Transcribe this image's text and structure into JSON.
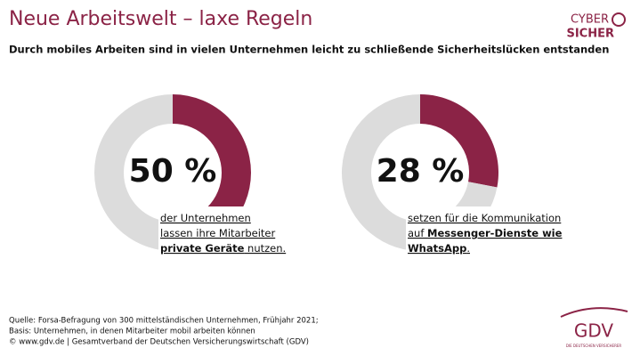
{
  "title": "Neue Arbeitswelt – laxe Regeln",
  "subtitle": "Durch mobiles Arbeiten sind in vielen Unternehmen leicht zu schließende Sicherheitslücken entstanden",
  "logo_top": [
    "CYBER",
    "SICHER"
  ],
  "logo_bottom": {
    "name": "GDV",
    "tagline": "DIE DEUTSCHEN VERSICHERER"
  },
  "footer": [
    "Quelle: Forsa-Befragung von 300 mittelständischen Unternehmen, Frühjahr 2021;",
    "Basis: Unternehmen, in denen Mitarbeiter mobil arbeiten können",
    "© www.gdv.de | Gesamtverband der Deutschen Versicherungswirtschaft (GDV)"
  ],
  "chart_data": [
    {
      "type": "donut",
      "values": [
        50,
        50
      ],
      "value_labels": [
        "50 %",
        null
      ],
      "colors": [
        "#8b2346",
        "#dcdcdc"
      ],
      "description": [
        [
          {
            "text": "der Unternehmen"
          }
        ],
        [
          {
            "text": "lassen ihre Mitarbeiter"
          }
        ],
        [
          {
            "text": "private Geräte",
            "bold": true
          },
          {
            "text": " nutzen."
          }
        ]
      ]
    },
    {
      "type": "donut",
      "values": [
        28,
        72
      ],
      "value_labels": [
        "28 %",
        null
      ],
      "colors": [
        "#8b2346",
        "#dcdcdc"
      ],
      "description": [
        [
          {
            "text": "setzen für die Kommunikation"
          }
        ],
        [
          {
            "text": "auf "
          },
          {
            "text": "Messenger-Dienste wie",
            "bold": true
          }
        ],
        [
          {
            "text": "WhatsApp",
            "bold": true
          },
          {
            "text": "."
          }
        ]
      ]
    }
  ]
}
